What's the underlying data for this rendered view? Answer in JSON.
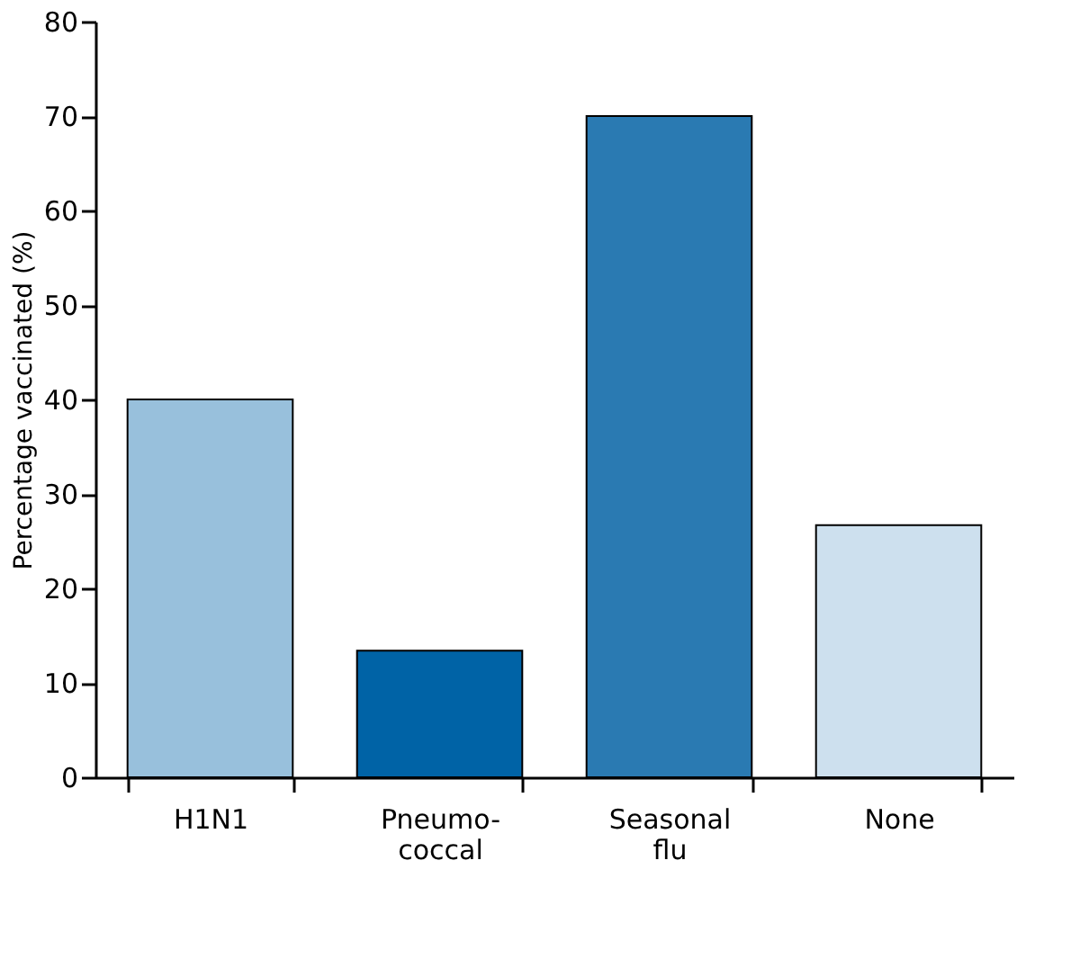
{
  "chart_data": {
    "type": "bar",
    "ylabel": "Percentage vaccinated (%)",
    "categories": [
      "H1N1",
      "Pneumo-coccal",
      "Seasonal flu",
      "None"
    ],
    "values": [
      40,
      13.4,
      70,
      26.7
    ],
    "colors": [
      "#98c0dc",
      "#0063a6",
      "#2a7ab2",
      "#cde0ee"
    ],
    "ylim": [
      0,
      80
    ],
    "yticks": [
      0,
      10,
      20,
      30,
      40,
      50,
      60,
      70,
      80
    ],
    "grid": false
  }
}
